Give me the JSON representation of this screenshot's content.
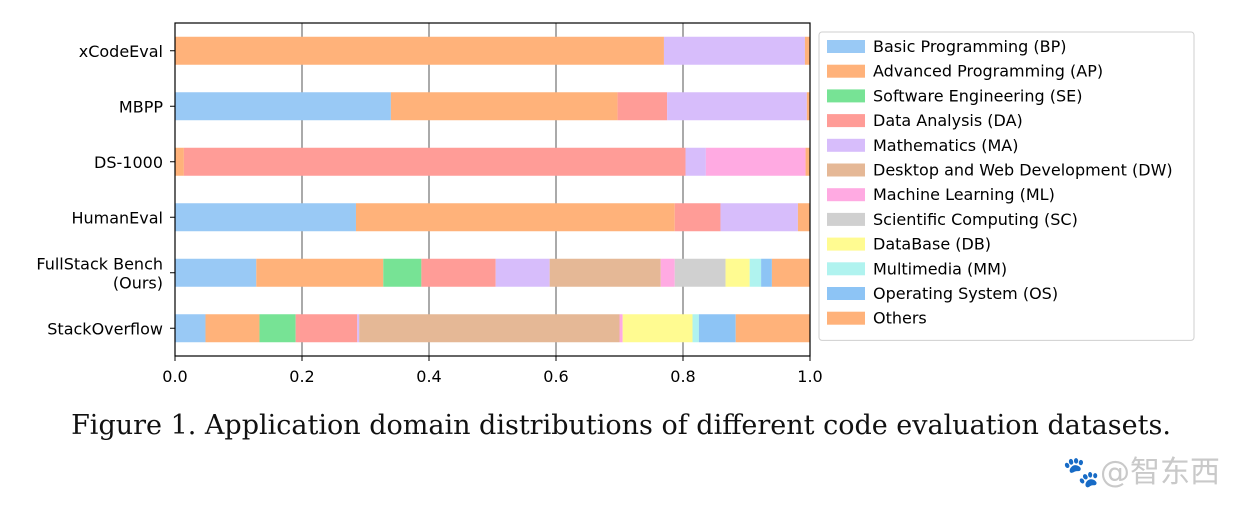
{
  "chart_data": {
    "type": "bar",
    "orientation": "horizontal",
    "stacked": true,
    "categories": [
      "xCodeEval",
      "MBPP",
      "DS-1000",
      "HumanEval",
      "FullStack Bench\n(Ours)",
      "StackOverflow"
    ],
    "xlim": [
      0.0,
      1.0
    ],
    "xticks": [
      "0.0",
      "0.2",
      "0.4",
      "0.6",
      "0.8",
      "1.0"
    ],
    "grid": "vertical",
    "legend_position": "right",
    "series": [
      {
        "name": "Basic Programming (BP)",
        "color": "#99c9f5",
        "values": [
          0.0,
          0.34,
          0.0,
          0.285,
          0.128,
          0.048
        ]
      },
      {
        "name": "Advanced Programming (AP)",
        "color": "#ffb27a",
        "values": [
          0.77,
          0.357,
          0.014,
          0.502,
          0.2,
          0.085
        ]
      },
      {
        "name": "Software Engineering (SE)",
        "color": "#77e395",
        "values": [
          0.0,
          0.0,
          0.0,
          0.0,
          0.06,
          0.057
        ]
      },
      {
        "name": "Data Analysis (DA)",
        "color": "#ff9c97",
        "values": [
          0.0,
          0.078,
          0.79,
          0.072,
          0.117,
          0.097
        ]
      },
      {
        "name": "Mathematics (MA)",
        "color": "#d7bdfb",
        "values": [
          0.222,
          0.22,
          0.032,
          0.122,
          0.085,
          0.003
        ]
      },
      {
        "name": "Desktop and Web Development (DW)",
        "color": "#e5b896",
        "values": [
          0.0,
          0.0,
          0.0,
          0.0,
          0.175,
          0.41
        ]
      },
      {
        "name": "Machine Learning (ML)",
        "color": "#ffaae2",
        "values": [
          0.0,
          0.0,
          0.157,
          0.0,
          0.022,
          0.005
        ]
      },
      {
        "name": "Scientific Computing (SC)",
        "color": "#d0d0d0",
        "values": [
          0.0,
          0.0,
          0.0,
          0.0,
          0.08,
          0.0
        ]
      },
      {
        "name": "DataBase (DB)",
        "color": "#fffb91",
        "values": [
          0.0,
          0.0,
          0.0,
          0.0,
          0.038,
          0.11
        ]
      },
      {
        "name": "Multimedia (MM)",
        "color": "#b0f3ef",
        "values": [
          0.0,
          0.0,
          0.0,
          0.0,
          0.018,
          0.01
        ]
      },
      {
        "name": "Operating System (OS)",
        "color": "#8dc4f5",
        "values": [
          0.0,
          0.0,
          0.0,
          0.0,
          0.017,
          0.058
        ]
      },
      {
        "name": "Others",
        "color": "#ffb27a",
        "values": [
          0.008,
          0.005,
          0.007,
          0.019,
          0.06,
          0.117
        ]
      }
    ]
  },
  "caption": "Figure 1. Application domain distributions of different code evaluation datasets.",
  "watermark": "🐾@智东西"
}
